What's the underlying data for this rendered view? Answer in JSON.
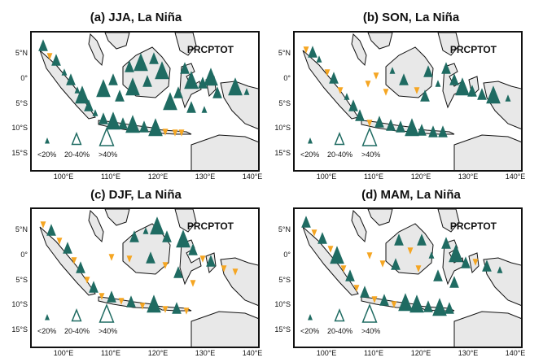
{
  "figure": {
    "index_label": "PRCPTOT",
    "legend": [
      "<20%",
      "20-40%",
      ">40%"
    ],
    "lat_ticks": [
      "5°N",
      "0°",
      "5°S",
      "10°S",
      "15°S"
    ],
    "lon_ticks": [
      "100°E",
      "110°E",
      "120°E",
      "130°E",
      "140°E"
    ],
    "colors": {
      "increase": "#1f6b62",
      "decrease": "#f5a623",
      "land": "#e8e8e8",
      "coast": "#111111"
    }
  },
  "panels": [
    {
      "title": "(a) JJA, La Niña"
    },
    {
      "title": "(b) SON, La Niña"
    },
    {
      "title": "(c) DJF, La Niña"
    },
    {
      "title": "(d) MAM, La Niña"
    }
  ]
}
